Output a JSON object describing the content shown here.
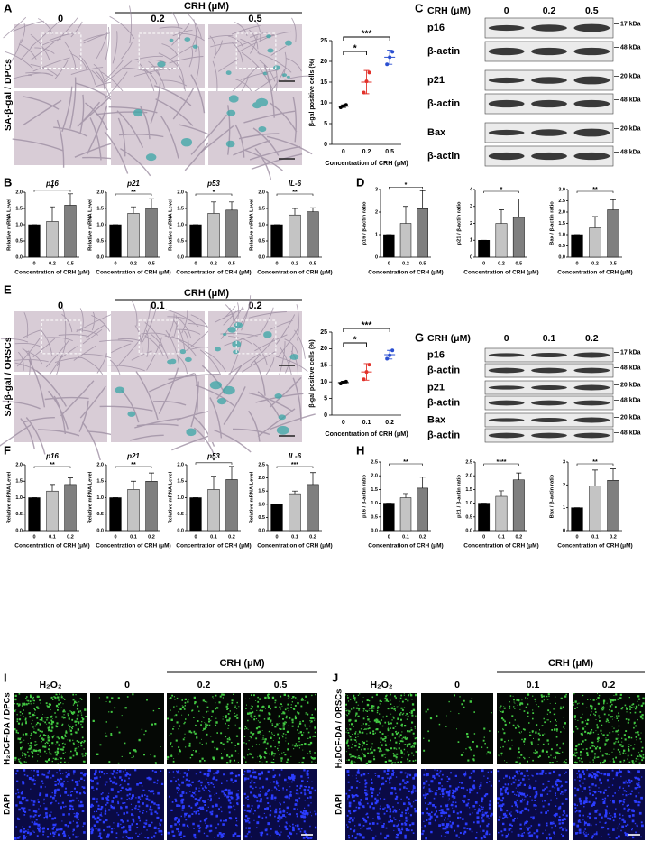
{
  "panels": [
    {
      "label": "A",
      "treatment": "CRH (μM)",
      "doses": [
        "0",
        "0.2",
        "0.5"
      ],
      "stain": "SA-β-gal / DPCs",
      "chart": {
        "type": "scatter",
        "ylabel": "β-gal positive cells (%)",
        "xlabel": "Concentration of CRH (μM)",
        "categories": [
          "0",
          "0.2",
          "0.5"
        ],
        "means": [
          9.2,
          15,
          21
        ],
        "errors": [
          0.3,
          2.8,
          1.7
        ],
        "points": [
          [
            8.9,
            9.2,
            9.5
          ],
          [
            12.5,
            15.2,
            17.3
          ],
          [
            19.3,
            21,
            22.3
          ]
        ],
        "ylim": [
          0,
          25
        ],
        "yticks": [
          0,
          5,
          10,
          15,
          20,
          25
        ],
        "significance": [
          "*",
          "***"
        ]
      }
    },
    {
      "label": "B",
      "charts": [
        {
          "type": "bar",
          "title": "p16",
          "ylabel": "Relative mRNA Level",
          "xlabel": "Concentration of CRH (μM)",
          "categories": [
            "0",
            "0.2",
            "0.5"
          ],
          "values": [
            1,
            1.1,
            1.6
          ],
          "errors": [
            0,
            0.45,
            0.35
          ],
          "ylim": [
            0,
            2
          ],
          "yticks": [
            {
              "value": 0,
              "label": "0.0"
            },
            0.5,
            {
              "value": 1,
              "label": "1.0"
            },
            1.5,
            {
              "value": 2,
              "label": "2.0"
            }
          ],
          "significance": "*"
        },
        {
          "type": "bar",
          "title": "p21",
          "ylabel": "Relative mRNA Level",
          "xlabel": "Concentration of CRH (μM)",
          "categories": [
            "0",
            "0.2",
            "0.5"
          ],
          "values": [
            1,
            1.35,
            1.5
          ],
          "errors": [
            0,
            0.2,
            0.3
          ],
          "ylim": [
            0,
            2
          ],
          "yticks": [
            {
              "value": 0,
              "label": "0.0"
            },
            0.5,
            {
              "value": 1,
              "label": "1.0"
            },
            1.5,
            {
              "value": 2,
              "label": "2.0"
            }
          ],
          "significance": "**"
        },
        {
          "type": "bar",
          "title": "p53",
          "ylabel": "Relative mRNA Level",
          "xlabel": "Concentration of CRH (μM)",
          "categories": [
            "0",
            "0.2",
            "0.5"
          ],
          "values": [
            1,
            1.35,
            1.45
          ],
          "errors": [
            0,
            0.35,
            0.25
          ],
          "ylim": [
            0,
            2
          ],
          "yticks": [
            {
              "value": 0,
              "label": "0.0"
            },
            0.5,
            {
              "value": 1,
              "label": "1.0"
            },
            1.5,
            {
              "value": 2,
              "label": "2.0"
            }
          ],
          "significance": "*"
        },
        {
          "type": "bar",
          "title": "IL-6",
          "ylabel": "Relative mRNA Level",
          "xlabel": "Concentration of CRH (μM)",
          "categories": [
            "0",
            "0.2",
            "0.5"
          ],
          "values": [
            1,
            1.3,
            1.4
          ],
          "errors": [
            0,
            0.2,
            0.12
          ],
          "ylim": [
            0,
            2
          ],
          "yticks": [
            {
              "value": 0,
              "label": "0.0"
            },
            0.5,
            {
              "value": 1,
              "label": "1.0"
            },
            1.5,
            {
              "value": 2,
              "label": "2.0"
            }
          ],
          "significance": "**"
        }
      ]
    },
    {
      "label": "C",
      "treatment": "CRH (μM)",
      "doses": [
        "0",
        "0.2",
        "0.5"
      ],
      "rows": [
        "p16",
        "β-actin",
        "p21",
        "β-actin",
        "Bax",
        "β-actin"
      ],
      "markers": [
        "17 kDa",
        "48 kDa",
        "20 kDa",
        "48 kDa",
        "20 kDa",
        "48 kDa"
      ]
    },
    {
      "label": "D",
      "charts": [
        {
          "type": "bar",
          "ylabel": "p16 / β-actin ratio",
          "xlabel": "Concentration of CRH (μM)",
          "categories": [
            "0",
            "0.2",
            "0.5"
          ],
          "values": [
            1,
            1.5,
            2.15
          ],
          "errors": [
            0,
            0.75,
            0.8
          ],
          "ylim": [
            0,
            3
          ],
          "yticks": [
            0,
            1,
            2,
            3
          ],
          "significance": "*"
        },
        {
          "type": "bar",
          "ylabel": "p21 / β-actin ratio",
          "xlabel": "Concentration of CRH (μM)",
          "categories": [
            "0",
            "0.2",
            "0.5"
          ],
          "values": [
            1,
            2,
            2.35
          ],
          "errors": [
            0,
            0.8,
            1.1
          ],
          "ylim": [
            0,
            4
          ],
          "yticks": [
            0,
            1,
            2,
            3,
            4
          ],
          "significance": "*"
        },
        {
          "type": "bar",
          "ylabel": "Bax / β-actin ratio",
          "xlabel": "Concentration of CRH (μM)",
          "categories": [
            "0",
            "0.2",
            "0.5"
          ],
          "values": [
            1,
            1.3,
            2.1
          ],
          "errors": [
            0,
            0.5,
            0.45
          ],
          "ylim": [
            0,
            3
          ],
          "yticks": [
            {
              "value": 0,
              "label": "0.0"
            },
            0.5,
            {
              "value": 1,
              "label": "1.0"
            },
            1.5,
            {
              "value": 2,
              "label": "2.0"
            },
            2.5,
            {
              "value": 3,
              "label": "3.0"
            }
          ],
          "significance": "**"
        }
      ]
    },
    {
      "label": "E",
      "treatment": "CRH (μM)",
      "doses": [
        "0",
        "0.1",
        "0.2"
      ],
      "stain": "SA-β-gal / ORSCs",
      "chart": {
        "type": "scatter",
        "ylabel": "β-gal positive cells (%)",
        "xlabel": "Concentration of CRH (μM)",
        "categories": [
          "0",
          "0.1",
          "0.2"
        ],
        "means": [
          9.8,
          13,
          18.2
        ],
        "errors": [
          0.4,
          2.5,
          1.3
        ],
        "points": [
          [
            9.5,
            9.8,
            10.1
          ],
          [
            10.8,
            13,
            15.2
          ],
          [
            17,
            18,
            19.5
          ]
        ],
        "ylim": [
          0,
          25
        ],
        "yticks": [
          0,
          5,
          10,
          15,
          20,
          25
        ],
        "significance": [
          "*",
          "***"
        ]
      }
    },
    {
      "label": "F",
      "charts": [
        {
          "type": "bar",
          "title": "p16",
          "ylabel": "Relative mRNA Level",
          "xlabel": "Concentration of CRH (μM)",
          "categories": [
            "0",
            "0.1",
            "0.2"
          ],
          "values": [
            1,
            1.2,
            1.4
          ],
          "errors": [
            0,
            0.2,
            0.2
          ],
          "ylim": [
            0,
            2
          ],
          "yticks": [
            {
              "value": 0,
              "label": "0.0"
            },
            0.5,
            {
              "value": 1,
              "label": "1.0"
            },
            1.5,
            {
              "value": 2,
              "label": "2.0"
            }
          ],
          "significance": "**"
        },
        {
          "type": "bar",
          "title": "p21",
          "ylabel": "Relative mRNA Level",
          "xlabel": "Concentration of CRH (μM)",
          "categories": [
            "0",
            "0.1",
            "0.2"
          ],
          "values": [
            1,
            1.25,
            1.5
          ],
          "errors": [
            0,
            0.25,
            0.25
          ],
          "ylim": [
            0,
            2
          ],
          "yticks": [
            {
              "value": 0,
              "label": "0.0"
            },
            0.5,
            {
              "value": 1,
              "label": "1.0"
            },
            1.5,
            {
              "value": 2,
              "label": "2.0"
            }
          ],
          "significance": "**"
        },
        {
          "type": "bar",
          "title": "p53",
          "ylabel": "Relative mRNA Level",
          "xlabel": "Concentration of CRH (μM)",
          "categories": [
            "0",
            "0.1",
            "0.2"
          ],
          "values": [
            1,
            1.25,
            1.55
          ],
          "errors": [
            0,
            0.4,
            0.4
          ],
          "ylim": [
            0,
            2
          ],
          "yticks": [
            {
              "value": 0,
              "label": "0.0"
            },
            0.5,
            {
              "value": 1,
              "label": "1.0"
            },
            1.5,
            {
              "value": 2,
              "label": "2.0"
            }
          ],
          "significance": "*"
        },
        {
          "type": "bar",
          "title": "IL-6",
          "ylabel": "Relative mRNA Level",
          "xlabel": "Concentration of CRH (μM)",
          "categories": [
            "0",
            "0.1",
            "0.2"
          ],
          "values": [
            1,
            1.4,
            1.75
          ],
          "errors": [
            0,
            0.1,
            0.45
          ],
          "ylim": [
            0,
            2.5
          ],
          "yticks": [
            {
              "value": 0,
              "label": "0.0"
            },
            0.5,
            {
              "value": 1,
              "label": "1.0"
            },
            1.5,
            {
              "value": 2,
              "label": "2.0"
            },
            2.5
          ],
          "significance": "***"
        }
      ]
    },
    {
      "label": "G",
      "treatment": "CRH (μM)",
      "doses": [
        "0",
        "0.1",
        "0.2"
      ],
      "rows": [
        "p16",
        "β-actin",
        "p21",
        "β-actin",
        "Bax",
        "β-actin"
      ],
      "markers": [
        "17 kDa",
        "48 kDa",
        "20 kDa",
        "48 kDa",
        "20 kDa",
        "48 kDa"
      ]
    },
    {
      "label": "H",
      "charts": [
        {
          "type": "bar",
          "ylabel": "p16 / β-actin ratio",
          "xlabel": "Concentration of CRH (μM)",
          "categories": [
            "0",
            "0.1",
            "0.2"
          ],
          "values": [
            1,
            1.2,
            1.55
          ],
          "errors": [
            0,
            0.15,
            0.4
          ],
          "ylim": [
            0,
            2.5
          ],
          "yticks": [
            {
              "value": 0,
              "label": "0.0"
            },
            0.5,
            {
              "value": 1,
              "label": "1.0"
            },
            1.5,
            {
              "value": 2,
              "label": "2.0"
            },
            2.5
          ],
          "significance": "**"
        },
        {
          "type": "bar",
          "ylabel": "p21 / β-actin ratio",
          "xlabel": "Concentration of CRH (μM)",
          "categories": [
            "0",
            "0.1",
            "0.2"
          ],
          "values": [
            1,
            1.25,
            1.85
          ],
          "errors": [
            0,
            0.2,
            0.25
          ],
          "ylim": [
            0,
            2.5
          ],
          "yticks": [
            {
              "value": 0,
              "label": "0.0"
            },
            0.5,
            {
              "value": 1,
              "label": "1.0"
            },
            1.5,
            {
              "value": 2,
              "label": "2.0"
            },
            2.5
          ],
          "significance": "****"
        },
        {
          "type": "bar",
          "ylabel": "Bax / β-actin ratio",
          "xlabel": "Concentration of CRH (μM)",
          "categories": [
            "0",
            "0.1",
            "0.2"
          ],
          "values": [
            1,
            1.95,
            2.2
          ],
          "errors": [
            0,
            0.7,
            0.5
          ],
          "ylim": [
            0,
            3
          ],
          "yticks": [
            0,
            1,
            2,
            3
          ],
          "significance": "**"
        }
      ]
    },
    {
      "label": "I",
      "treatment": "CRH (μM)",
      "groups": [
        "H₂O₂",
        "0",
        "0.2",
        "0.5"
      ],
      "stains": [
        "H₂DCF-DA / DPCs",
        "DAPI"
      ]
    },
    {
      "label": "J",
      "treatment": "CRH (μM)",
      "groups": [
        "H₂O₂",
        "0",
        "0.1",
        "0.2"
      ],
      "stains": [
        "H₂DCF-DA / ORSCs",
        "DAPI"
      ]
    }
  ],
  "bar_colors": [
    "#000000",
    "#c4c4c4",
    "#7f7f7f"
  ],
  "dot_colors": [
    "#000000",
    "#e2322b",
    "#2a4fd1"
  ]
}
